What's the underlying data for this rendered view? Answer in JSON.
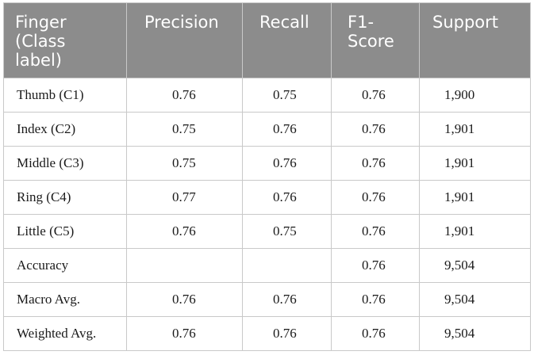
{
  "table": {
    "headers": [
      "Finger (Class label)",
      "Precision",
      "Recall",
      "F1-Score",
      "Support"
    ],
    "header_display": [
      "Finger\n(Class\nlabel)",
      "Precision",
      "Recall",
      "F1-\nScore",
      "Support"
    ],
    "header_color": "#8c8c8c",
    "rows": [
      {
        "label": "Thumb (C1)",
        "precision": "0.76",
        "recall": "0.75",
        "f1": "0.76",
        "support": "1,900"
      },
      {
        "label": "Index (C2)",
        "precision": "0.75",
        "recall": "0.76",
        "f1": "0.76",
        "support": "1,901"
      },
      {
        "label": "Middle (C3)",
        "precision": "0.75",
        "recall": "0.76",
        "f1": "0.76",
        "support": "1,901"
      },
      {
        "label": "Ring (C4)",
        "precision": "0.77",
        "recall": "0.76",
        "f1": "0.76",
        "support": "1,901"
      },
      {
        "label": "Little (C5)",
        "precision": "0.76",
        "recall": "0.75",
        "f1": "0.76",
        "support": "1,901"
      },
      {
        "label": "Accuracy",
        "precision": "",
        "recall": "",
        "f1": "0.76",
        "support": "9,504"
      },
      {
        "label": "Macro Avg.",
        "precision": "0.76",
        "recall": "0.76",
        "f1": "0.76",
        "support": "9,504"
      },
      {
        "label": "Weighted Avg.",
        "precision": "0.76",
        "recall": "0.76",
        "f1": "0.76",
        "support": "9,504"
      }
    ]
  }
}
